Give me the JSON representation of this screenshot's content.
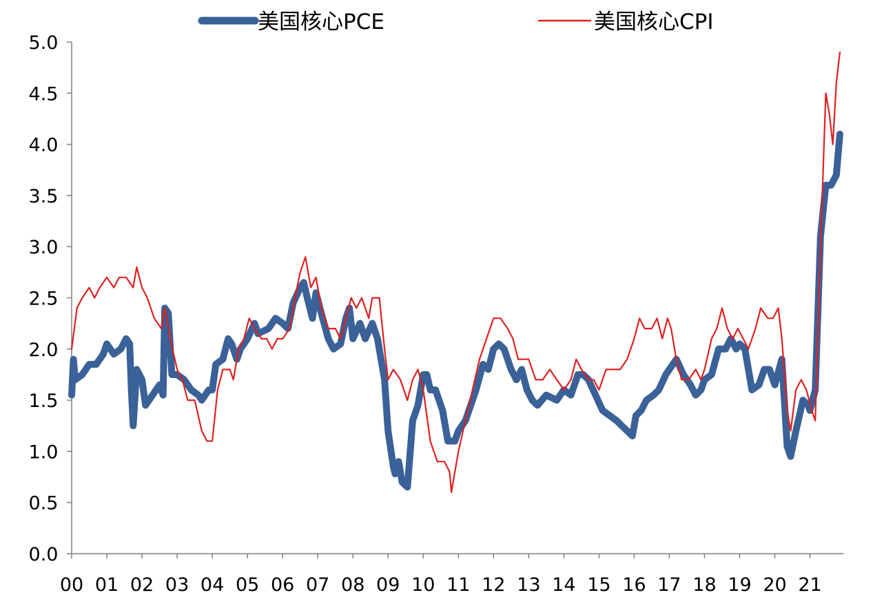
{
  "chart_data": {
    "type": "line",
    "title": "",
    "xlabel": "",
    "ylabel": "",
    "ylim": [
      0,
      5
    ],
    "y_ticks": [
      "0.0",
      "0.5",
      "1.0",
      "1.5",
      "2.0",
      "2.5",
      "3.0",
      "3.5",
      "4.0",
      "4.5",
      "5.0"
    ],
    "x_ticks": [
      "00",
      "01",
      "02",
      "03",
      "04",
      "05",
      "06",
      "07",
      "08",
      "09",
      "10",
      "11",
      "12",
      "13",
      "14",
      "15",
      "16",
      "17",
      "18",
      "19",
      "20",
      "21"
    ],
    "grid": false,
    "legend_position": "top",
    "series": [
      {
        "name": "美国核心PCE",
        "color": "#3a6198",
        "style": "thick",
        "points": [
          [
            2000.0,
            1.55
          ],
          [
            2000.05,
            1.9
          ],
          [
            2000.1,
            1.7
          ],
          [
            2000.3,
            1.75
          ],
          [
            2000.5,
            1.85
          ],
          [
            2000.7,
            1.85
          ],
          [
            2000.9,
            1.95
          ],
          [
            2001.0,
            2.05
          ],
          [
            2001.2,
            1.95
          ],
          [
            2001.4,
            2.0
          ],
          [
            2001.55,
            2.1
          ],
          [
            2001.65,
            2.05
          ],
          [
            2001.7,
            1.6
          ],
          [
            2001.75,
            1.25
          ],
          [
            2001.85,
            1.8
          ],
          [
            2002.0,
            1.7
          ],
          [
            2002.1,
            1.45
          ],
          [
            2002.3,
            1.55
          ],
          [
            2002.5,
            1.65
          ],
          [
            2002.6,
            1.55
          ],
          [
            2002.65,
            2.4
          ],
          [
            2002.75,
            2.35
          ],
          [
            2002.85,
            1.75
          ],
          [
            2003.0,
            1.75
          ],
          [
            2003.2,
            1.7
          ],
          [
            2003.4,
            1.6
          ],
          [
            2003.6,
            1.55
          ],
          [
            2003.7,
            1.5
          ],
          [
            2003.9,
            1.6
          ],
          [
            2004.0,
            1.6
          ],
          [
            2004.1,
            1.85
          ],
          [
            2004.3,
            1.9
          ],
          [
            2004.45,
            2.1
          ],
          [
            2004.55,
            2.05
          ],
          [
            2004.7,
            1.9
          ],
          [
            2004.8,
            2.0
          ],
          [
            2005.0,
            2.1
          ],
          [
            2005.2,
            2.25
          ],
          [
            2005.3,
            2.15
          ],
          [
            2005.6,
            2.2
          ],
          [
            2005.8,
            2.3
          ],
          [
            2006.0,
            2.25
          ],
          [
            2006.15,
            2.2
          ],
          [
            2006.3,
            2.45
          ],
          [
            2006.5,
            2.6
          ],
          [
            2006.6,
            2.65
          ],
          [
            2006.7,
            2.5
          ],
          [
            2006.85,
            2.3
          ],
          [
            2006.95,
            2.55
          ],
          [
            2007.1,
            2.35
          ],
          [
            2007.3,
            2.1
          ],
          [
            2007.45,
            2.0
          ],
          [
            2007.65,
            2.05
          ],
          [
            2007.8,
            2.3
          ],
          [
            2007.9,
            2.4
          ],
          [
            2008.0,
            2.1
          ],
          [
            2008.2,
            2.25
          ],
          [
            2008.35,
            2.1
          ],
          [
            2008.55,
            2.25
          ],
          [
            2008.7,
            2.1
          ],
          [
            2008.9,
            1.7
          ],
          [
            2009.0,
            1.2
          ],
          [
            2009.15,
            0.85
          ],
          [
            2009.2,
            0.78
          ],
          [
            2009.3,
            0.9
          ],
          [
            2009.4,
            0.7
          ],
          [
            2009.55,
            0.65
          ],
          [
            2009.7,
            1.3
          ],
          [
            2009.85,
            1.45
          ],
          [
            2010.0,
            1.75
          ],
          [
            2010.1,
            1.75
          ],
          [
            2010.2,
            1.6
          ],
          [
            2010.35,
            1.6
          ],
          [
            2010.55,
            1.4
          ],
          [
            2010.7,
            1.1
          ],
          [
            2010.9,
            1.1
          ],
          [
            2011.0,
            1.2
          ],
          [
            2011.2,
            1.3
          ],
          [
            2011.5,
            1.6
          ],
          [
            2011.7,
            1.85
          ],
          [
            2011.85,
            1.8
          ],
          [
            2012.0,
            2.0
          ],
          [
            2012.15,
            2.05
          ],
          [
            2012.3,
            2.0
          ],
          [
            2012.5,
            1.8
          ],
          [
            2012.65,
            1.7
          ],
          [
            2012.8,
            1.8
          ],
          [
            2012.95,
            1.6
          ],
          [
            2013.1,
            1.5
          ],
          [
            2013.25,
            1.45
          ],
          [
            2013.5,
            1.55
          ],
          [
            2013.8,
            1.5
          ],
          [
            2014.0,
            1.6
          ],
          [
            2014.2,
            1.55
          ],
          [
            2014.4,
            1.75
          ],
          [
            2014.55,
            1.75
          ],
          [
            2014.7,
            1.7
          ],
          [
            2014.9,
            1.55
          ],
          [
            2015.1,
            1.4
          ],
          [
            2015.3,
            1.35
          ],
          [
            2015.5,
            1.3
          ],
          [
            2015.65,
            1.25
          ],
          [
            2015.8,
            1.2
          ],
          [
            2015.95,
            1.15
          ],
          [
            2016.05,
            1.35
          ],
          [
            2016.2,
            1.4
          ],
          [
            2016.35,
            1.5
          ],
          [
            2016.55,
            1.55
          ],
          [
            2016.7,
            1.6
          ],
          [
            2016.9,
            1.75
          ],
          [
            2017.1,
            1.85
          ],
          [
            2017.2,
            1.9
          ],
          [
            2017.4,
            1.75
          ],
          [
            2017.6,
            1.65
          ],
          [
            2017.75,
            1.55
          ],
          [
            2017.9,
            1.6
          ],
          [
            2018.0,
            1.7
          ],
          [
            2018.2,
            1.75
          ],
          [
            2018.4,
            2.0
          ],
          [
            2018.6,
            2.0
          ],
          [
            2018.75,
            2.1
          ],
          [
            2018.9,
            2.0
          ],
          [
            2019.0,
            2.05
          ],
          [
            2019.15,
            2.0
          ],
          [
            2019.35,
            1.6
          ],
          [
            2019.55,
            1.65
          ],
          [
            2019.7,
            1.8
          ],
          [
            2019.85,
            1.8
          ],
          [
            2020.0,
            1.65
          ],
          [
            2020.2,
            1.9
          ],
          [
            2020.35,
            1.05
          ],
          [
            2020.45,
            0.95
          ],
          [
            2020.6,
            1.2
          ],
          [
            2020.8,
            1.5
          ],
          [
            2020.95,
            1.45
          ],
          [
            2021.0,
            1.4
          ],
          [
            2021.15,
            1.6
          ],
          [
            2021.3,
            3.1
          ],
          [
            2021.45,
            3.6
          ],
          [
            2021.6,
            3.6
          ],
          [
            2021.75,
            3.7
          ],
          [
            2021.85,
            4.1
          ]
        ]
      },
      {
        "name": "美国核心CPI",
        "color": "#e02020",
        "style": "thin",
        "points": [
          [
            2000.0,
            2.0
          ],
          [
            2000.15,
            2.4
          ],
          [
            2000.3,
            2.5
          ],
          [
            2000.5,
            2.6
          ],
          [
            2000.65,
            2.5
          ],
          [
            2000.8,
            2.6
          ],
          [
            2001.0,
            2.7
          ],
          [
            2001.2,
            2.6
          ],
          [
            2001.35,
            2.7
          ],
          [
            2001.55,
            2.7
          ],
          [
            2001.75,
            2.6
          ],
          [
            2001.85,
            2.8
          ],
          [
            2002.0,
            2.6
          ],
          [
            2002.15,
            2.5
          ],
          [
            2002.35,
            2.3
          ],
          [
            2002.55,
            2.2
          ],
          [
            2002.65,
            2.4
          ],
          [
            2002.8,
            2.1
          ],
          [
            2003.0,
            1.8
          ],
          [
            2003.15,
            1.7
          ],
          [
            2003.3,
            1.5
          ],
          [
            2003.5,
            1.5
          ],
          [
            2003.7,
            1.2
          ],
          [
            2003.85,
            1.1
          ],
          [
            2004.0,
            1.1
          ],
          [
            2004.15,
            1.6
          ],
          [
            2004.3,
            1.8
          ],
          [
            2004.5,
            1.8
          ],
          [
            2004.6,
            1.7
          ],
          [
            2004.75,
            2.0
          ],
          [
            2004.9,
            2.1
          ],
          [
            2005.05,
            2.3
          ],
          [
            2005.2,
            2.2
          ],
          [
            2005.4,
            2.1
          ],
          [
            2005.55,
            2.1
          ],
          [
            2005.7,
            2.0
          ],
          [
            2005.85,
            2.1
          ],
          [
            2006.0,
            2.1
          ],
          [
            2006.2,
            2.2
          ],
          [
            2006.35,
            2.5
          ],
          [
            2006.5,
            2.75
          ],
          [
            2006.65,
            2.9
          ],
          [
            2006.8,
            2.6
          ],
          [
            2006.95,
            2.7
          ],
          [
            2007.1,
            2.4
          ],
          [
            2007.3,
            2.2
          ],
          [
            2007.5,
            2.2
          ],
          [
            2007.65,
            2.1
          ],
          [
            2007.8,
            2.3
          ],
          [
            2007.95,
            2.5
          ],
          [
            2008.1,
            2.4
          ],
          [
            2008.25,
            2.5
          ],
          [
            2008.45,
            2.3
          ],
          [
            2008.55,
            2.5
          ],
          [
            2008.75,
            2.5
          ],
          [
            2008.9,
            2.0
          ],
          [
            2009.0,
            1.7
          ],
          [
            2009.15,
            1.8
          ],
          [
            2009.35,
            1.7
          ],
          [
            2009.55,
            1.5
          ],
          [
            2009.7,
            1.7
          ],
          [
            2009.85,
            1.8
          ],
          [
            2010.0,
            1.6
          ],
          [
            2010.2,
            1.1
          ],
          [
            2010.4,
            0.9
          ],
          [
            2010.6,
            0.9
          ],
          [
            2010.75,
            0.8
          ],
          [
            2010.8,
            0.6
          ],
          [
            2010.9,
            0.8
          ],
          [
            2011.0,
            1.0
          ],
          [
            2011.2,
            1.3
          ],
          [
            2011.4,
            1.6
          ],
          [
            2011.6,
            1.9
          ],
          [
            2011.8,
            2.1
          ],
          [
            2011.9,
            2.2
          ],
          [
            2012.0,
            2.3
          ],
          [
            2012.2,
            2.3
          ],
          [
            2012.4,
            2.2
          ],
          [
            2012.55,
            2.1
          ],
          [
            2012.7,
            1.9
          ],
          [
            2012.85,
            1.9
          ],
          [
            2013.0,
            1.9
          ],
          [
            2013.2,
            1.7
          ],
          [
            2013.4,
            1.7
          ],
          [
            2013.6,
            1.8
          ],
          [
            2013.8,
            1.7
          ],
          [
            2014.0,
            1.6
          ],
          [
            2014.2,
            1.7
          ],
          [
            2014.35,
            1.9
          ],
          [
            2014.5,
            1.8
          ],
          [
            2014.7,
            1.7
          ],
          [
            2014.85,
            1.7
          ],
          [
            2015.0,
            1.6
          ],
          [
            2015.2,
            1.8
          ],
          [
            2015.4,
            1.8
          ],
          [
            2015.6,
            1.8
          ],
          [
            2015.8,
            1.9
          ],
          [
            2016.0,
            2.1
          ],
          [
            2016.15,
            2.3
          ],
          [
            2016.3,
            2.2
          ],
          [
            2016.5,
            2.2
          ],
          [
            2016.65,
            2.3
          ],
          [
            2016.8,
            2.1
          ],
          [
            2016.95,
            2.3
          ],
          [
            2017.05,
            2.2
          ],
          [
            2017.2,
            1.9
          ],
          [
            2017.35,
            1.7
          ],
          [
            2017.55,
            1.7
          ],
          [
            2017.75,
            1.8
          ],
          [
            2017.9,
            1.7
          ],
          [
            2018.0,
            1.8
          ],
          [
            2018.2,
            2.1
          ],
          [
            2018.35,
            2.2
          ],
          [
            2018.5,
            2.4
          ],
          [
            2018.65,
            2.2
          ],
          [
            2018.8,
            2.1
          ],
          [
            2018.95,
            2.2
          ],
          [
            2019.1,
            2.1
          ],
          [
            2019.25,
            2.0
          ],
          [
            2019.45,
            2.2
          ],
          [
            2019.6,
            2.4
          ],
          [
            2019.8,
            2.3
          ],
          [
            2019.95,
            2.3
          ],
          [
            2020.1,
            2.4
          ],
          [
            2020.2,
            2.1
          ],
          [
            2020.35,
            1.4
          ],
          [
            2020.45,
            1.2
          ],
          [
            2020.6,
            1.6
          ],
          [
            2020.75,
            1.7
          ],
          [
            2020.9,
            1.6
          ],
          [
            2021.05,
            1.4
          ],
          [
            2021.15,
            1.3
          ],
          [
            2021.3,
            3.0
          ],
          [
            2021.45,
            4.5
          ],
          [
            2021.55,
            4.3
          ],
          [
            2021.65,
            4.0
          ],
          [
            2021.75,
            4.6
          ],
          [
            2021.85,
            4.9
          ]
        ]
      }
    ]
  }
}
